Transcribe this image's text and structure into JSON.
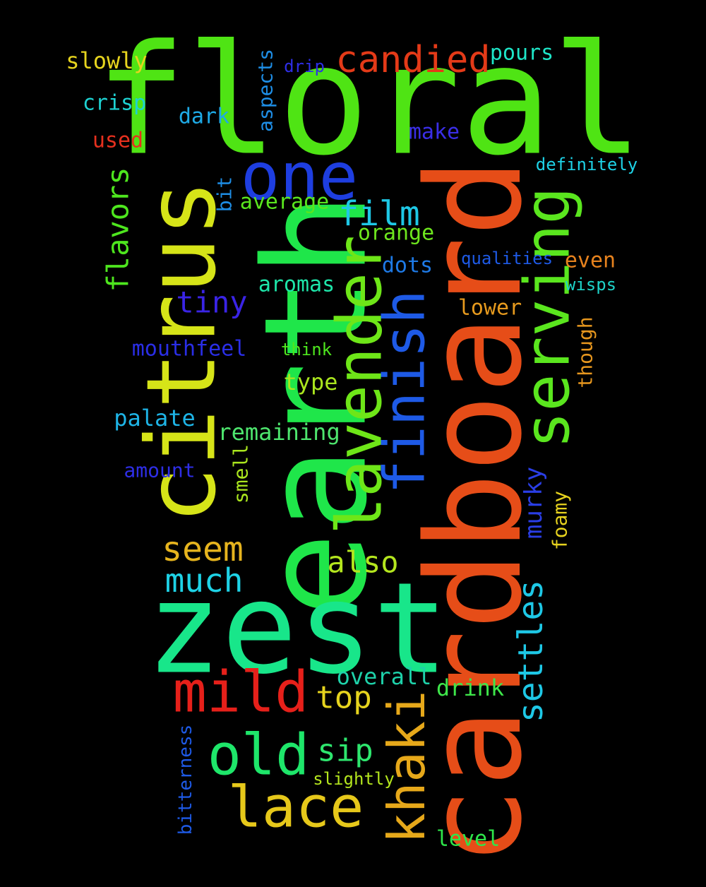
{
  "word_cloud": {
    "words": [
      {
        "text": "floral",
        "color": "#4fe414"
      },
      {
        "text": "cardboard",
        "color": "#e64d18"
      },
      {
        "text": "earth",
        "color": "#1fe64a"
      },
      {
        "text": "zest",
        "color": "#18e68a"
      },
      {
        "text": "citrus",
        "color": "#d6e418"
      },
      {
        "text": "one",
        "color": "#1e3ee0"
      },
      {
        "text": "lavender",
        "color": "#6ee618"
      },
      {
        "text": "serving",
        "color": "#5ae61e"
      },
      {
        "text": "finish",
        "color": "#1e5ae6"
      },
      {
        "text": "candied",
        "color": "#e43a18"
      },
      {
        "text": "mild",
        "color": "#e6201a"
      },
      {
        "text": "old",
        "color": "#1ee66a"
      },
      {
        "text": "lace",
        "color": "#e6c81a"
      },
      {
        "text": "khaki",
        "color": "#e6a81a"
      },
      {
        "text": "seem",
        "color": "#e6b41e"
      },
      {
        "text": "much",
        "color": "#1ed2e6"
      },
      {
        "text": "film",
        "color": "#1ec8e6"
      },
      {
        "text": "tiny",
        "color": "#3a24e6"
      },
      {
        "text": "flavors",
        "color": "#4ee61e"
      },
      {
        "text": "also",
        "color": "#b4e61e"
      },
      {
        "text": "settles",
        "color": "#1ec8e6"
      },
      {
        "text": "top",
        "color": "#e6d41e"
      },
      {
        "text": "sip",
        "color": "#2ee66e"
      },
      {
        "text": "murky",
        "color": "#2a3ee6"
      },
      {
        "text": "slowly",
        "color": "#e6d41e"
      },
      {
        "text": "pours",
        "color": "#1ee6c8"
      },
      {
        "text": "crisp",
        "color": "#1ed2d2"
      },
      {
        "text": "dark",
        "color": "#1eaae6"
      },
      {
        "text": "used",
        "color": "#e6301e"
      },
      {
        "text": "aspects",
        "color": "#1e8ee6"
      },
      {
        "text": "drip",
        "color": "#2e2ee6"
      },
      {
        "text": "make",
        "color": "#3a2ee6"
      },
      {
        "text": "definitely",
        "color": "#1ed2e6"
      },
      {
        "text": "bit",
        "color": "#1e8ee6"
      },
      {
        "text": "average",
        "color": "#5ae61e"
      },
      {
        "text": "orange",
        "color": "#6ee61e"
      },
      {
        "text": "dots",
        "color": "#1e7ae6"
      },
      {
        "text": "qualities",
        "color": "#1e5ae6"
      },
      {
        "text": "even",
        "color": "#e6821e"
      },
      {
        "text": "aromas",
        "color": "#1ee6aa"
      },
      {
        "text": "wisps",
        "color": "#1ed2c8"
      },
      {
        "text": "lower",
        "color": "#e69a1e"
      },
      {
        "text": "mouthfeel",
        "color": "#2a2ee6"
      },
      {
        "text": "think",
        "color": "#4ee61e"
      },
      {
        "text": "though",
        "color": "#e6961e"
      },
      {
        "text": "type",
        "color": "#aae61e"
      },
      {
        "text": "palate",
        "color": "#1eb4e6"
      },
      {
        "text": "remaining",
        "color": "#4ee66e"
      },
      {
        "text": "amount",
        "color": "#2e2ee6"
      },
      {
        "text": "smell",
        "color": "#aae61e"
      },
      {
        "text": "foamy",
        "color": "#e6d21e"
      },
      {
        "text": "overall",
        "color": "#1ed2aa"
      },
      {
        "text": "drink",
        "color": "#3ee64a"
      },
      {
        "text": "bitterness",
        "color": "#1e5ae6"
      },
      {
        "text": "slightly",
        "color": "#b4e61e"
      },
      {
        "text": "level",
        "color": "#2ee64a"
      }
    ]
  }
}
